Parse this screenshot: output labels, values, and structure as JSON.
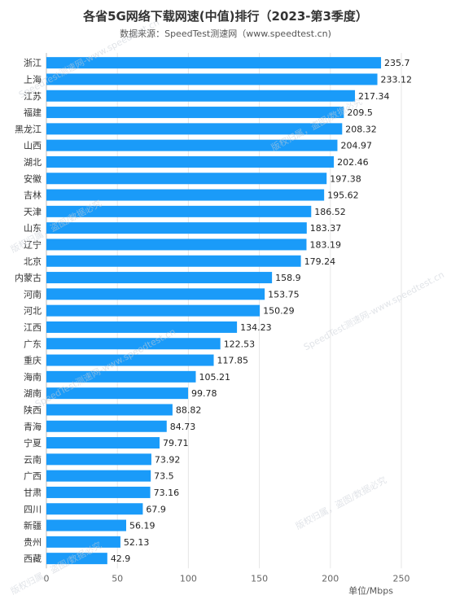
{
  "chart_data": {
    "type": "bar",
    "orientation": "horizontal",
    "title": "各省5G网络下载网速(中值)排行（2023-第3季度）",
    "subtitle": "数据来源：SpeedTest测速网（www.speedtest.cn)",
    "xlabel": "单位/Mbps",
    "xlim": [
      0,
      250
    ],
    "xticks": [
      "0",
      "50",
      "100",
      "150",
      "200",
      "250"
    ],
    "grid": true,
    "bar_color": "#1a9bf9",
    "categories": [
      "浙江",
      "上海",
      "江苏",
      "福建",
      "黑龙江",
      "山西",
      "湖北",
      "安徽",
      "吉林",
      "天津",
      "山东",
      "辽宁",
      "北京",
      "内蒙古",
      "河南",
      "河北",
      "江西",
      "广东",
      "重庆",
      "海南",
      "湖南",
      "陕西",
      "青海",
      "宁夏",
      "云南",
      "广西",
      "甘肃",
      "四川",
      "新疆",
      "贵州",
      "西藏"
    ],
    "values": [
      235.7,
      233.12,
      217.34,
      209.5,
      208.32,
      204.97,
      202.46,
      197.38,
      195.62,
      186.52,
      183.37,
      183.19,
      179.24,
      158.9,
      153.75,
      150.29,
      134.23,
      122.53,
      117.85,
      105.21,
      99.78,
      88.82,
      84.73,
      79.71,
      73.92,
      73.5,
      73.16,
      67.9,
      56.19,
      52.13,
      42.9
    ],
    "value_labels": [
      "235.7",
      "233.12",
      "217.34",
      "209.5",
      "208.32",
      "204.97",
      "202.46",
      "197.38",
      "195.62",
      "186.52",
      "183.37",
      "183.19",
      "179.24",
      "158.9",
      "153.75",
      "150.29",
      "134.23",
      "122.53",
      "117.85",
      "105.21",
      "99.78",
      "88.82",
      "84.73",
      "79.71",
      "73.92",
      "73.5",
      "73.16",
      "67.9",
      "56.19",
      "52.13",
      "42.9"
    ]
  },
  "watermark": {
    "text_1": "SpeedTest测速网-www.speedtest.cn",
    "text_2": "版权归属，盗图/数据必究"
  }
}
